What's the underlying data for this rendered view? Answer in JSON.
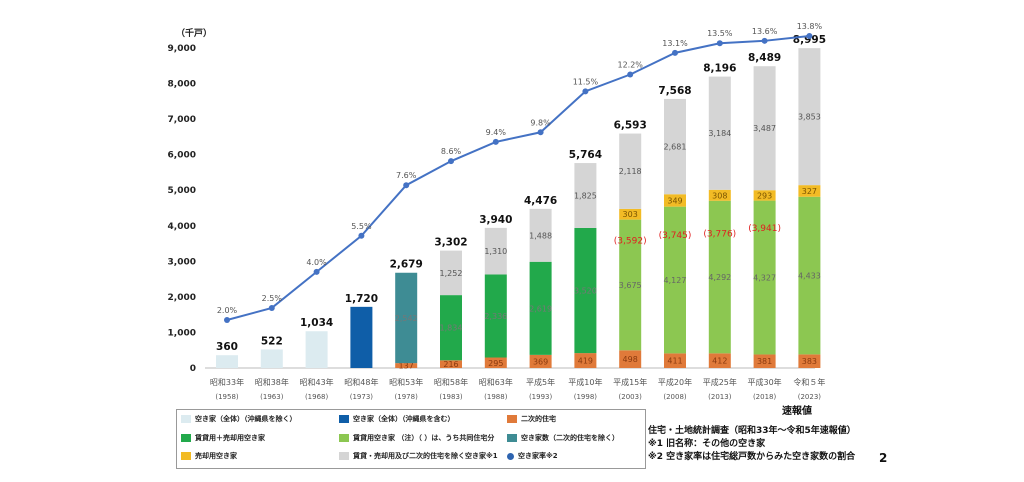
{
  "chart_data": {
    "type": "bar",
    "unit_label": "（千戸）",
    "ylim": [
      0,
      9000
    ],
    "yticks": [
      "0",
      "1,000",
      "2,000",
      "3,000",
      "4,000",
      "5,000",
      "6,000",
      "7,000",
      "8,000",
      "9,000"
    ],
    "ytick_values": [
      0,
      1000,
      2000,
      3000,
      4000,
      5000,
      6000,
      7000,
      8000,
      9000
    ],
    "categories": [
      {
        "era": "昭和33年",
        "year": "(1958)"
      },
      {
        "era": "昭和38年",
        "year": "(1963)"
      },
      {
        "era": "昭和43年",
        "year": "(1968)"
      },
      {
        "era": "昭和48年",
        "year": "(1973)"
      },
      {
        "era": "昭和53年",
        "year": "(1978)"
      },
      {
        "era": "昭和58年",
        "year": "(1983)"
      },
      {
        "era": "昭和63年",
        "year": "(1988)"
      },
      {
        "era": "平成5年",
        "year": "(1993)"
      },
      {
        "era": "平成10年",
        "year": "(1998)"
      },
      {
        "era": "平成15年",
        "year": "(2003)"
      },
      {
        "era": "平成20年",
        "year": "(2008)"
      },
      {
        "era": "平成25年",
        "year": "(2013)"
      },
      {
        "era": "平成30年",
        "year": "(2018)"
      },
      {
        "era": "令和５年",
        "year": "(2023)"
      }
    ],
    "totals": [
      "360",
      "522",
      "1,034",
      "1,720",
      "2,679",
      "3,302",
      "3,940",
      "4,476",
      "5,764",
      "6,593",
      "7,568",
      "8,196",
      "8,489",
      "8,995"
    ],
    "total_values": [
      360,
      522,
      1034,
      1720,
      2679,
      3302,
      3940,
      4476,
      5764,
      6593,
      7568,
      8196,
      8489,
      8995
    ],
    "series": [
      {
        "key": "secondary",
        "name": "二次的住宅",
        "color": "#E07A3A",
        "values": [
          null,
          null,
          null,
          null,
          137,
          216,
          295,
          369,
          419,
          498,
          411,
          412,
          381,
          383
        ],
        "labels": [
          "",
          "",
          "",
          "",
          "137",
          "216",
          "295",
          "369",
          "419",
          "498",
          "411",
          "412",
          "381",
          "383"
        ]
      },
      {
        "key": "rent_sale_green",
        "name": "賃貸用＋売却用空き家",
        "color": "#22A94B",
        "values": [
          null,
          null,
          null,
          null,
          null,
          1834,
          2336,
          2619,
          3520,
          null,
          null,
          null,
          null,
          null
        ],
        "labels": [
          "",
          "",
          "",
          "",
          "",
          "1,834",
          "2,336",
          "2,619",
          "3,520",
          "",
          "",
          "",
          "",
          ""
        ]
      },
      {
        "key": "teal",
        "name": "空き家数（二次的住宅を除く）",
        "color": "#3E8C94",
        "values": [
          null,
          null,
          null,
          null,
          2542,
          null,
          null,
          null,
          null,
          null,
          null,
          null,
          null,
          null
        ],
        "labels": [
          "",
          "",
          "",
          "",
          "2,542",
          "",
          "",
          "",
          "",
          "",
          "",
          "",
          "",
          ""
        ]
      },
      {
        "key": "rental",
        "name": "賃貸用空き家",
        "color": "#8CC751",
        "values": [
          null,
          null,
          null,
          null,
          null,
          null,
          null,
          null,
          null,
          3675,
          4127,
          4292,
          4327,
          4433
        ],
        "labels": [
          "",
          "",
          "",
          "",
          "",
          "",
          "",
          "",
          "",
          "3,675",
          "4,127",
          "4,292",
          "4,327",
          "4,433"
        ]
      },
      {
        "key": "for_sale",
        "name": "売却用空き家",
        "color": "#F2BB25",
        "values": [
          null,
          null,
          null,
          null,
          null,
          null,
          null,
          null,
          null,
          303,
          349,
          308,
          293,
          327
        ],
        "labels": [
          "",
          "",
          "",
          "",
          "",
          "",
          "",
          "",
          "",
          "303",
          "349",
          "308",
          "293",
          "327"
        ]
      },
      {
        "key": "other",
        "name": "賃貸・売却用及び二次的住宅を除く空き家※1",
        "color": "#D5D5D5",
        "values": [
          null,
          null,
          null,
          null,
          null,
          1252,
          1310,
          1488,
          1825,
          2118,
          2681,
          3184,
          3487,
          3853
        ],
        "labels": [
          "",
          "",
          "",
          "",
          "",
          "1,252",
          "1,310",
          "1,488",
          "1,825",
          "2,118",
          "2,681",
          "3,184",
          "3,487",
          "3,853"
        ]
      },
      {
        "key": "all_excl",
        "name": "空き家（全体）（沖縄県を除く）",
        "color": "#DCEBF0",
        "values": [
          360,
          522,
          1034,
          null,
          null,
          null,
          null,
          null,
          null,
          null,
          null,
          null,
          null,
          null
        ],
        "labels": [
          "",
          "",
          "",
          "",
          "",
          "",
          "",
          "",
          "",
          "",
          "",
          "",
          "",
          ""
        ]
      },
      {
        "key": "all_incl",
        "name": "空き家（全体）（沖縄県を含む）",
        "color": "#0F5EA8",
        "values": [
          null,
          null,
          null,
          1720,
          null,
          null,
          null,
          null,
          null,
          null,
          null,
          null,
          null,
          null
        ],
        "labels": [
          "",
          "",
          "",
          "",
          "",
          "",
          "",
          "",
          "",
          "",
          "",
          "",
          "",
          ""
        ]
      }
    ],
    "rental_shared": [
      "",
      "",
      "",
      "",
      "",
      "",
      "",
      "",
      "",
      "(3,592)",
      "(3,745)",
      "(3,776)",
      "(3,941)",
      ""
    ],
    "rental_shared_values": [
      null,
      null,
      null,
      null,
      null,
      null,
      null,
      null,
      null,
      3592,
      3745,
      3776,
      3941,
      null
    ],
    "vacancy_rate": {
      "name": "空き家率※2",
      "color": "#4472C4",
      "values": [
        2.0,
        2.5,
        4.0,
        5.5,
        7.6,
        8.6,
        9.4,
        9.8,
        11.5,
        12.2,
        13.1,
        13.5,
        13.6,
        13.8
      ],
      "labels": [
        "2.0%",
        "2.5%",
        "4.0%",
        "5.5%",
        "7.6%",
        "8.6%",
        "9.4%",
        "9.8%",
        "11.5%",
        "12.2%",
        "13.1%",
        "13.5%",
        "13.6%",
        "13.8%"
      ]
    }
  },
  "legend": {
    "items": [
      {
        "label": "空き家（全体）（沖縄県を除く）",
        "color": "#DCEBF0"
      },
      {
        "label": "空き家（全体）（沖縄県を含む）",
        "color": "#0F5EA8"
      },
      {
        "label": "二次的住宅",
        "color": "#E07A3A"
      },
      {
        "label": "賃貸用＋売却用空き家",
        "color": "#22A94B"
      },
      {
        "label": "賃貸用空き家 （注）（ ）は、うち共同住宅分",
        "color": "#8CC751"
      },
      {
        "label": "空き家数（二次的住宅を除く）",
        "color": "#3E8C94"
      },
      {
        "label": "売却用空き家",
        "color": "#F2BB25"
      },
      {
        "label": "賃貸・売却用及び二次的住宅を除く空き家※1",
        "color": "#D5D5D5"
      },
      {
        "label": "空き家率※2",
        "color": "#2E64B0"
      }
    ]
  },
  "annotation": {
    "preliminary": "速報値"
  },
  "source": {
    "line1": "住宅・土地統計調査（昭和33年～令和5年速報値）",
    "line2": "※1 旧名称：その他の空き家",
    "line3": "※2 空き家率は住宅総戸数からみた空き家数の割合"
  },
  "page_number": "2"
}
